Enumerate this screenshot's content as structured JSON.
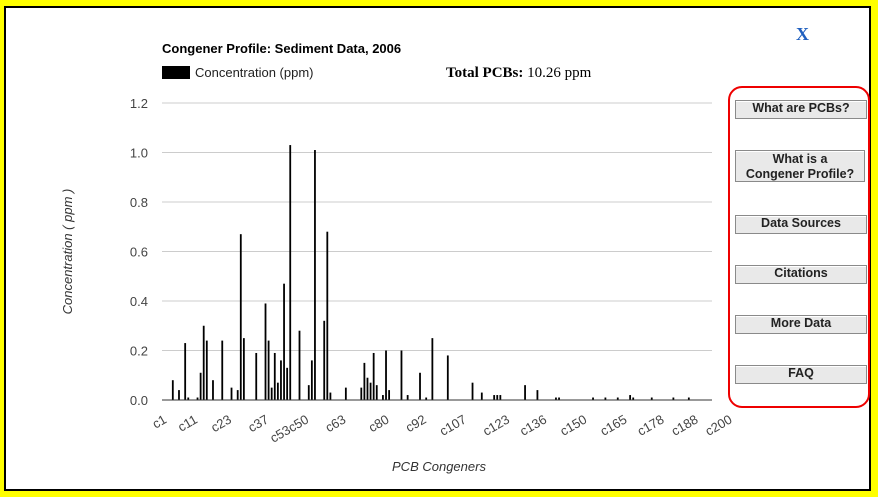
{
  "close_label": "X",
  "chart_title": "Congener Profile: Sediment Data, 2006",
  "legend_label": "Concentration (ppm)",
  "total": {
    "label": "Total PCBs:",
    "value": "10.26 ppm"
  },
  "sidebar": {
    "buttons": [
      {
        "label": "What are PCBs?"
      },
      {
        "label": "What is a Congener Profile?"
      },
      {
        "label": "Data Sources"
      },
      {
        "label": "Citations"
      },
      {
        "label": "More Data"
      },
      {
        "label": "FAQ"
      }
    ]
  },
  "colors": {
    "background": "#ffff00",
    "bar": "#000000",
    "highlight_border": "#e00000",
    "close": "#1f5fbf"
  },
  "chart_data": {
    "type": "bar",
    "title": "Congener Profile: Sediment Data, 2006",
    "xlabel": "PCB Congeners",
    "ylabel": "Concentration ( ppm )",
    "ylim": [
      0,
      1.2
    ],
    "yticks": [
      0,
      0.2,
      0.4,
      0.6,
      0.8,
      1.0,
      1.2
    ],
    "ytick_labels": [
      "0.0",
      "0.2",
      "0.4",
      "0.6",
      "0.8",
      "1.0",
      "1.2"
    ],
    "grid": true,
    "legend": "top-left",
    "xtick_labels": [
      {
        "label": "c1",
        "index": 0
      },
      {
        "label": "c11",
        "index": 10
      },
      {
        "label": "c23",
        "index": 21
      },
      {
        "label": "c37",
        "index": 33
      },
      {
        "label": "c53c50",
        "index": 46
      },
      {
        "label": "c63",
        "index": 58
      },
      {
        "label": "c80",
        "index": 72
      },
      {
        "label": "c92",
        "index": 84
      },
      {
        "label": "c107",
        "index": 97
      },
      {
        "label": "c123",
        "index": 111
      },
      {
        "label": "c136",
        "index": 123
      },
      {
        "label": "c150",
        "index": 136
      },
      {
        "label": "c165",
        "index": 149
      },
      {
        "label": "c178",
        "index": 161
      },
      {
        "label": "c188",
        "index": 172
      },
      {
        "label": "c200",
        "index": 183
      }
    ],
    "values": [
      0.0,
      0.0,
      0.0,
      0.08,
      0.0,
      0.04,
      0.0,
      0.23,
      0.01,
      0.0,
      0.0,
      0.01,
      0.11,
      0.3,
      0.24,
      0.0,
      0.08,
      0.0,
      0.0,
      0.24,
      0.0,
      0.0,
      0.05,
      0.0,
      0.04,
      0.67,
      0.25,
      0.0,
      0.0,
      0.0,
      0.19,
      0.0,
      0.0,
      0.39,
      0.24,
      0.05,
      0.19,
      0.07,
      0.16,
      0.47,
      0.13,
      1.03,
      0.0,
      0.0,
      0.28,
      0.0,
      0.0,
      0.06,
      0.16,
      1.01,
      0.0,
      0.0,
      0.32,
      0.68,
      0.03,
      0.0,
      0.0,
      0.0,
      0.0,
      0.05,
      0.0,
      0.0,
      0.0,
      0.0,
      0.05,
      0.15,
      0.09,
      0.07,
      0.19,
      0.06,
      0.0,
      0.02,
      0.2,
      0.04,
      0.0,
      0.0,
      0.0,
      0.2,
      0.0,
      0.02,
      0.0,
      0.0,
      0.0,
      0.11,
      0.0,
      0.01,
      0.0,
      0.25,
      0.0,
      0.0,
      0.0,
      0.0,
      0.18,
      0.0,
      0.0,
      0.0,
      0.0,
      0.0,
      0.0,
      0.0,
      0.07,
      0.0,
      0.0,
      0.03,
      0.0,
      0.0,
      0.0,
      0.02,
      0.02,
      0.02,
      0.0,
      0.0,
      0.0,
      0.0,
      0.0,
      0.0,
      0.0,
      0.06,
      0.0,
      0.0,
      0.0,
      0.04,
      0.0,
      0.0,
      0.0,
      0.0,
      0.0,
      0.01,
      0.01,
      0.0,
      0.0,
      0.0,
      0.0,
      0.0,
      0.0,
      0.0,
      0.0,
      0.0,
      0.0,
      0.01,
      0.0,
      0.0,
      0.0,
      0.01,
      0.0,
      0.0,
      0.0,
      0.01,
      0.0,
      0.0,
      0.0,
      0.02,
      0.01,
      0.0,
      0.0,
      0.0,
      0.0,
      0.0,
      0.01,
      0.0,
      0.0,
      0.0,
      0.0,
      0.0,
      0.0,
      0.01,
      0.0,
      0.0,
      0.0,
      0.0,
      0.01,
      0.0,
      0.0,
      0.0,
      0.0,
      0.0,
      0.0,
      0.0
    ]
  }
}
